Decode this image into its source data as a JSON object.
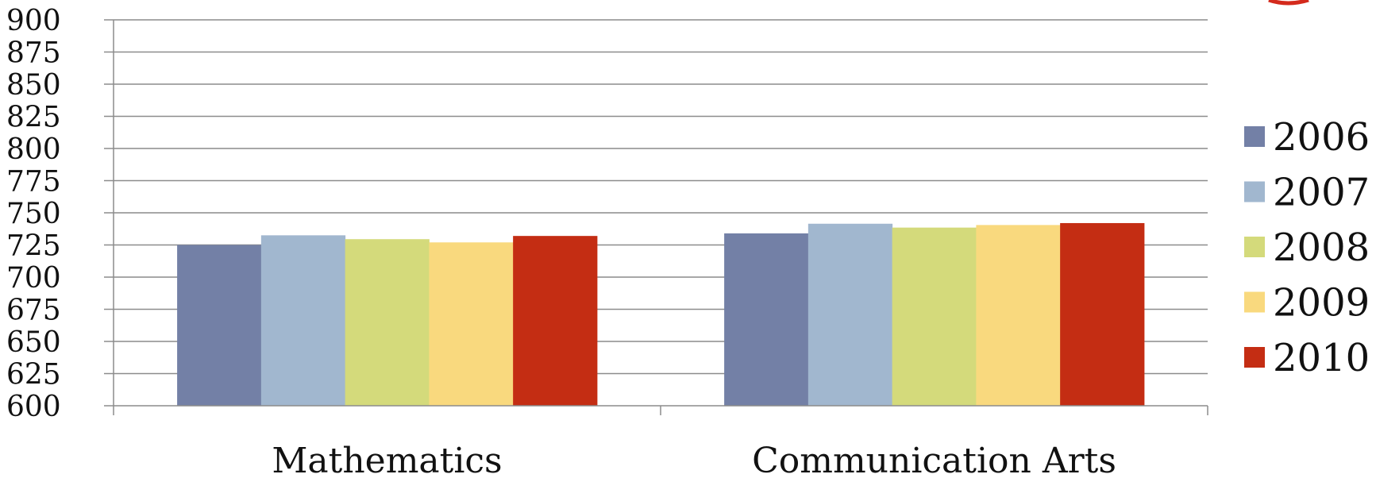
{
  "chart_data": {
    "type": "bar",
    "categories": [
      "Mathematics",
      "Communication Arts"
    ],
    "series": [
      {
        "name": "2006",
        "color": "#7380a6",
        "values": [
          725,
          734
        ]
      },
      {
        "name": "2007",
        "color": "#a1b7cf",
        "values": [
          732.5,
          741.5
        ]
      },
      {
        "name": "2008",
        "color": "#d4da7b",
        "values": [
          729.5,
          738.5
        ]
      },
      {
        "name": "2009",
        "color": "#f9d97e",
        "values": [
          727,
          740.5
        ]
      },
      {
        "name": "2010",
        "color": "#c42d13",
        "values": [
          732,
          742
        ]
      }
    ],
    "ylim": [
      600,
      900
    ],
    "yticks": [
      "600",
      "625",
      "650",
      "675",
      "700",
      "725",
      "750",
      "775",
      "800",
      "825",
      "850",
      "875",
      "900"
    ],
    "grid": true,
    "legend_position": "right",
    "gridline_color": "#8c8c8c"
  }
}
